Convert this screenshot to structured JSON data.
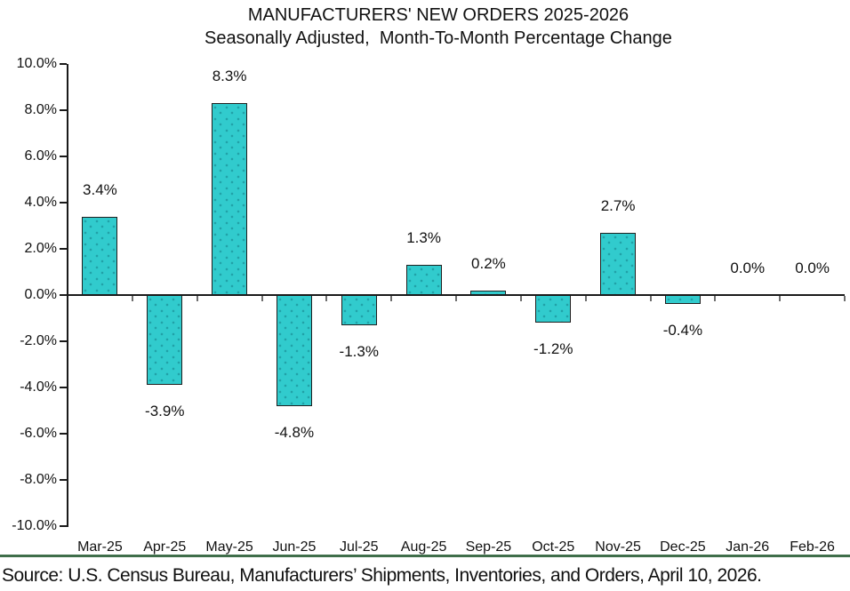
{
  "chart": {
    "title": "MANUFACTURERS' NEW ORDERS 2025-2026",
    "subtitle": "Seasonally Adjusted,  Month-To-Month Percentage Change",
    "source": "Source: U.S. Census Bureau, Manufacturers’ Shipments, Inventories, and Orders, April 10, 2026.",
    "colors": {
      "bar_fill": "#31cbcd",
      "bar_border": "#1f1f1f",
      "axis": "#1a1a1a",
      "divider_green": "#3f6e4a"
    }
  },
  "chart_data": {
    "type": "bar",
    "title": "MANUFACTURERS' NEW ORDERS 2025-2026",
    "subtitle": "Seasonally Adjusted,  Month-To-Month Percentage Change",
    "categories": [
      "Mar-25",
      "Apr-25",
      "May-25",
      "Jun-25",
      "Jul-25",
      "Aug-25",
      "Sep-25",
      "Oct-25",
      "Nov-25",
      "Dec-25",
      "Jan-26",
      "Feb-26"
    ],
    "values": [
      3.4,
      -3.9,
      8.3,
      -4.8,
      -1.3,
      1.3,
      0.2,
      -1.2,
      2.7,
      -0.4,
      0.0,
      0.0
    ],
    "value_labels": [
      "3.4%",
      "-3.9%",
      "8.3%",
      "-4.8%",
      "-1.3%",
      "1.3%",
      "0.2%",
      "-1.2%",
      "2.7%",
      "-0.4%",
      "0.0%",
      "0.0%"
    ],
    "xlabel": "",
    "ylabel": "",
    "ylim": [
      -10,
      10
    ],
    "ytick_step": 2,
    "ytick_labels": [
      "10.0%",
      "8.0%",
      "6.0%",
      "4.0%",
      "2.0%",
      "0.0%",
      "-2.0%",
      "-4.0%",
      "-6.0%",
      "-8.0%",
      "-10.0%"
    ],
    "grid": false,
    "legend": false,
    "source": "Source: U.S. Census Bureau, Manufacturers’ Shipments, Inventories, and Orders, April 10, 2026."
  }
}
